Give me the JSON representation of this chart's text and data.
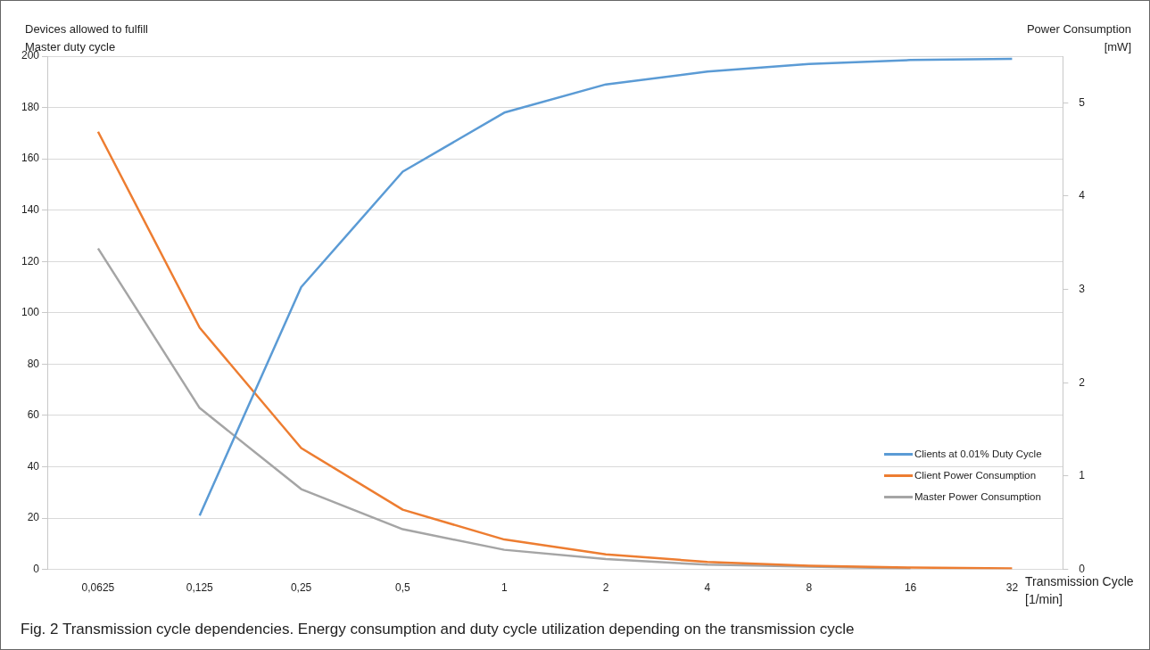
{
  "chart_data": {
    "type": "line",
    "ylabel": "Devices allowed to fulfill\nMaster duty cycle",
    "y2label": "Power Consumption\n[mW]",
    "xlabel": "Transmission Cycle\n[1/min]",
    "annotations": [
      "Fig. 2 Transmission cycle dependencies. Energy consumption and duty cycle utilization depending on the transmission cycle"
    ],
    "categories": [
      "0,0625",
      "0,125",
      "0,25",
      "0,5",
      "1",
      "2",
      "4",
      "8",
      "16",
      "32"
    ],
    "series": [
      {
        "name": "Clients at 0.01% Duty Cycle",
        "color": "#5b9bd5",
        "values": [
          null,
          21,
          110,
          155,
          178,
          189,
          194,
          197,
          198.5,
          199
        ]
      },
      {
        "name": "Client Power Consumption",
        "color": "#ed7d31",
        "axis": "y2",
        "values": [
          4.69,
          2.59,
          1.3,
          0.64,
          0.32,
          0.16,
          0.08,
          0.04,
          0.02,
          0.01
        ]
      },
      {
        "name": "Master Power Consumption",
        "color": "#a5a5a5",
        "axis": "y2",
        "values": [
          3.44,
          1.73,
          0.86,
          0.43,
          0.21,
          0.11,
          0.05,
          0.03,
          0.01,
          null
        ]
      }
    ],
    "ylim": [
      0,
      200
    ],
    "yticks": [
      0,
      20,
      40,
      60,
      80,
      100,
      120,
      140,
      160,
      180,
      200
    ],
    "y2lim": [
      0,
      5.5
    ],
    "y2ticks": [
      0,
      1,
      2,
      3,
      4,
      5
    ],
    "grid": "y",
    "legend": "right",
    "marker": "none",
    "line_style": "solid"
  }
}
